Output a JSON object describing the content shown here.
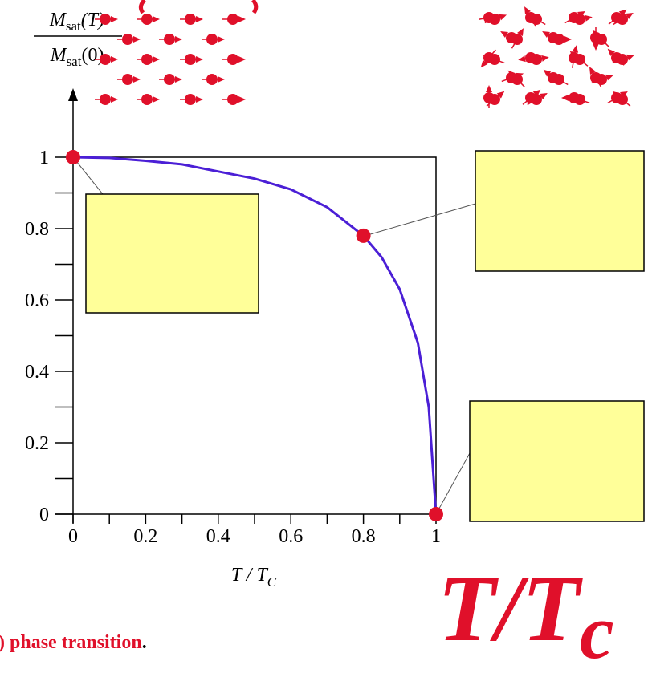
{
  "chart_data": {
    "type": "line",
    "y_label": {
      "symbol": "M",
      "subscript": "sat",
      "numerator_arg": "(T)",
      "denominator_arg": "(0)"
    },
    "x_label": {
      "text": "T / T",
      "subscript": "C"
    },
    "x": [
      0,
      0.1,
      0.2,
      0.3,
      0.4,
      0.5,
      0.6,
      0.7,
      0.8,
      0.85,
      0.9,
      0.95,
      0.98,
      1
    ],
    "series": [
      {
        "color": "#4b1fd6",
        "values": [
          1,
          0.998,
          0.99,
          0.98,
          0.96,
          0.94,
          0.91,
          0.86,
          0.78,
          0.72,
          0.63,
          0.48,
          0.3,
          0
        ]
      }
    ],
    "markers": {
      "color": "#e0102a",
      "x": [
        0,
        0.8,
        1
      ],
      "values": [
        1,
        0.78,
        0
      ]
    },
    "xlim": [
      0,
      1
    ],
    "ylim": [
      0,
      1
    ],
    "xticks": [
      0,
      0.2,
      0.4,
      0.6,
      0.8,
      1
    ],
    "yticks": [
      0,
      0.2,
      0.4,
      0.6,
      0.8,
      1
    ],
    "minor_xticks": [
      0.1,
      0.3,
      0.5,
      0.7,
      0.9
    ],
    "minor_yticks": [
      0.1,
      0.3,
      0.5,
      0.7,
      0.9
    ]
  },
  "overlay_label": {
    "main": "T/T",
    "sub": "c"
  },
  "caption": {
    "text": ") phase transition",
    "end": "."
  }
}
